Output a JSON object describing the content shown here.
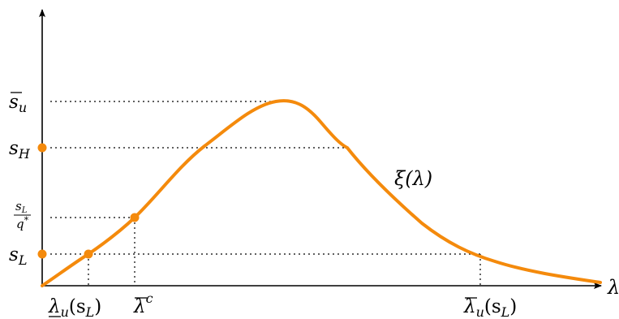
{
  "figure": {
    "curve_color": "#f48a0c",
    "curve_label": "ξ(λ)",
    "x_axis_label": "λ",
    "y_labels": {
      "s_u_bar": {
        "main": "s",
        "sub": "u"
      },
      "s_H": {
        "main": "s",
        "sub": "H"
      },
      "frac_num": {
        "main": "s",
        "sub": "L"
      },
      "frac_den": {
        "main": "q",
        "sup": "*"
      },
      "s_L": {
        "main": "s",
        "sub": "L"
      }
    },
    "x_labels": {
      "lambda_u_under": {
        "main": "λ",
        "sub": "u",
        "arg": "(s",
        "argsub": "L",
        "close": ")"
      },
      "lambda_c_bar": {
        "main": "λ",
        "sup": "c"
      },
      "lambda_u_bar": {
        "main": "λ",
        "sub": "u",
        "arg": "(s",
        "argsub": "L",
        "close": ")"
      }
    },
    "marker_color": "#f48a0c"
  }
}
